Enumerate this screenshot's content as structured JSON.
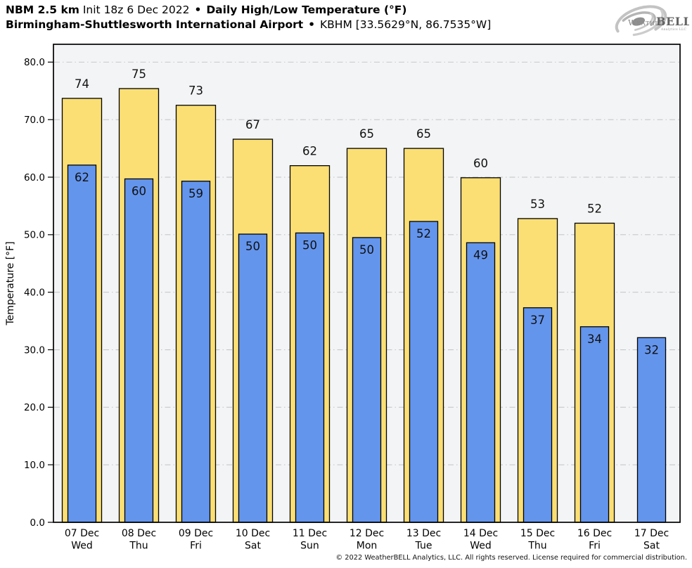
{
  "header": {
    "model": "NBM 2.5 km",
    "init": "Init 18z 6 Dec 2022",
    "sep": "•",
    "product": "Daily High/Low Temperature (°F)",
    "station": "Birmingham-Shuttlesworth International Airport",
    "sep2": "•",
    "station_id": "KBHM [33.5629°N, 86.7535°W]"
  },
  "logo": {
    "weather": "Weather",
    "bell": "BELL",
    "sub": "Analytics LLC"
  },
  "footer": {
    "copyright": "© 2022 WeatherBELL Analytics, LLC. All rights reserved. License required for commercial distribution."
  },
  "chart_data": {
    "type": "bar",
    "title": "NBM 2.5 km Init 18z 6 Dec 2022 • Daily High/Low Temperature (°F)",
    "subtitle": "Birmingham-Shuttlesworth International Airport • KBHM [33.5629°N, 86.7535°W]",
    "xlabel": "",
    "ylabel": "Temperature [°F]",
    "ylim": [
      0,
      83.1
    ],
    "yticks": [
      0,
      10,
      20,
      30,
      40,
      50,
      60,
      70,
      80
    ],
    "ytick_label_format": "one_decimal",
    "grid": {
      "horizontal": true,
      "style": "dash-dot",
      "color": "#C6C8CA"
    },
    "plot_bg": "#F3F4F5",
    "legend_position": "none",
    "categories": [
      {
        "date": "07 Dec",
        "day": "Wed"
      },
      {
        "date": "08 Dec",
        "day": "Thu"
      },
      {
        "date": "09 Dec",
        "day": "Fri"
      },
      {
        "date": "10 Dec",
        "day": "Sat"
      },
      {
        "date": "11 Dec",
        "day": "Sun"
      },
      {
        "date": "12 Dec",
        "day": "Mon"
      },
      {
        "date": "13 Dec",
        "day": "Tue"
      },
      {
        "date": "14 Dec",
        "day": "Wed"
      },
      {
        "date": "15 Dec",
        "day": "Thu"
      },
      {
        "date": "16 Dec",
        "day": "Fri"
      },
      {
        "date": "17 Dec",
        "day": "Sat"
      }
    ],
    "series": [
      {
        "name": "Daily High",
        "fill": "#FBDF74",
        "stroke": "#000000",
        "labels": [
          74,
          75,
          73,
          67,
          62,
          65,
          65,
          60,
          53,
          52,
          null
        ],
        "values": [
          73.7,
          75.4,
          72.5,
          66.6,
          62.0,
          65.0,
          65.0,
          59.9,
          52.8,
          52.0,
          null
        ]
      },
      {
        "name": "Daily Low",
        "fill": "#6495ED",
        "stroke": "#000000",
        "labels": [
          62,
          60,
          59,
          50,
          50,
          50,
          52,
          49,
          37,
          34,
          32
        ],
        "values": [
          62.1,
          59.7,
          59.3,
          50.1,
          50.3,
          49.5,
          52.3,
          48.6,
          37.3,
          34.0,
          32.1
        ]
      }
    ]
  }
}
